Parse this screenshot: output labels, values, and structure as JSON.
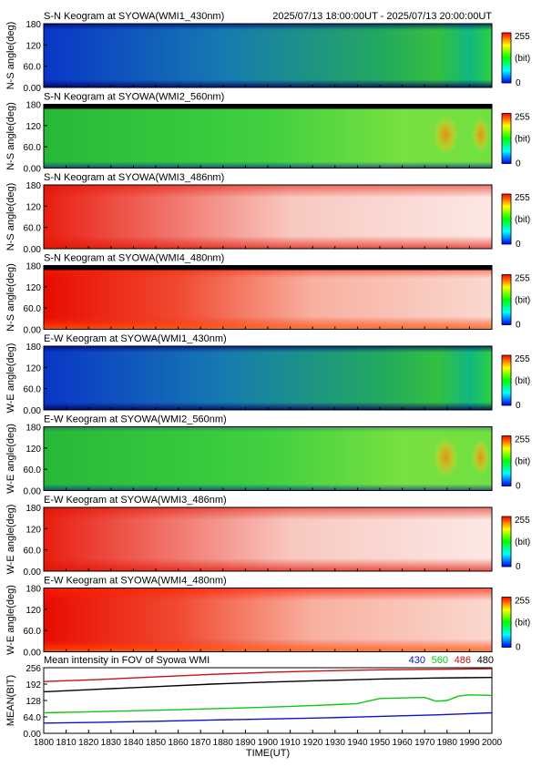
{
  "header": {
    "time_range": "2025/07/13 18:00:00UT - 2025/07/13 20:00:00UT"
  },
  "colorbar": {
    "max_label": "255",
    "unit_label": "(bit)",
    "min_label": "0"
  },
  "keograms": [
    {
      "title": "S-N Keogram at SYOWA(WMI1_430nm)",
      "ylabel": "N-S angle(deg)",
      "yticks": [
        "180",
        "120",
        "60.0",
        "0.00"
      ]
    },
    {
      "title": "S-N Keogram at SYOWA(WMI2_560nm)",
      "ylabel": "N-S angle(deg)",
      "yticks": [
        "180",
        "120",
        "60.0",
        "0.00"
      ]
    },
    {
      "title": "S-N Keogram at SYOWA(WMI3_486nm)",
      "ylabel": "N-S angle(deg)",
      "yticks": [
        "180",
        "120",
        "60.0",
        "0.00"
      ]
    },
    {
      "title": "S-N Keogram at SYOWA(WMI4_480nm)",
      "ylabel": "N-S angle(deg)",
      "yticks": [
        "180",
        "120",
        "60.0",
        "0.00"
      ]
    },
    {
      "title": "E-W Keogram at SYOWA(WMI1_430nm)",
      "ylabel": "W-E angle(deg)",
      "yticks": [
        "180",
        "120",
        "60.0",
        "0.00"
      ]
    },
    {
      "title": "E-W Keogram at SYOWA(WMI2_560nm)",
      "ylabel": "W-E angle(deg)",
      "yticks": [
        "180",
        "120",
        "60.0",
        "0.00"
      ]
    },
    {
      "title": "E-W Keogram at SYOWA(WMI3_486nm)",
      "ylabel": "W-E angle(deg)",
      "yticks": [
        "180",
        "120",
        "60.0",
        "0.00"
      ]
    },
    {
      "title": "E-W Keogram at SYOWA(WMI4_480nm)",
      "ylabel": "W-E angle(deg)",
      "yticks": [
        "180",
        "120",
        "60.0",
        "0.00"
      ]
    }
  ],
  "chart_data": {
    "type": "line",
    "title": "Mean intensity in FOV of Syowa WMI",
    "xlabel": "TIME(UT)",
    "ylabel": "MEAN(BIT)",
    "xlim": [
      1800,
      2000
    ],
    "ylim": [
      0,
      256
    ],
    "xticks": [
      "1800",
      "1810",
      "1820",
      "1830",
      "1840",
      "1850",
      "1860",
      "1870",
      "1880",
      "1890",
      "1900",
      "1910",
      "1920",
      "1930",
      "1940",
      "1950",
      "1960",
      "1970",
      "1980",
      "1990",
      "2000"
    ],
    "yticks": [
      "256",
      "192",
      "128",
      "64.0",
      "0.00"
    ],
    "series": [
      {
        "name": "430",
        "color": "#1010c8",
        "x": [
          1800,
          1825,
          1850,
          1875,
          1900,
          1925,
          1950,
          1975,
          2000
        ],
        "values": [
          40,
          43,
          47,
          52,
          56,
          60,
          66,
          72,
          80
        ]
      },
      {
        "name": "560",
        "color": "#10c810",
        "x": [
          1800,
          1820,
          1840,
          1860,
          1880,
          1900,
          1920,
          1930,
          1940,
          1945,
          1950,
          1960,
          1970,
          1975,
          1980,
          1985,
          1990,
          2000
        ],
        "values": [
          80,
          84,
          88,
          92,
          97,
          102,
          108,
          112,
          116,
          126,
          136,
          138,
          140,
          125,
          128,
          145,
          150,
          148
        ]
      },
      {
        "name": "486",
        "color": "#c81010",
        "x": [
          1800,
          1825,
          1850,
          1875,
          1900,
          1925,
          1950,
          1975,
          2000
        ],
        "values": [
          202,
          210,
          220,
          230,
          238,
          244,
          248,
          250,
          252
        ]
      },
      {
        "name": "480",
        "color": "#000000",
        "x": [
          1800,
          1825,
          1850,
          1875,
          1900,
          1925,
          1950,
          1975,
          2000
        ],
        "values": [
          162,
          172,
          182,
          192,
          200,
          206,
          212,
          216,
          218
        ]
      }
    ]
  }
}
